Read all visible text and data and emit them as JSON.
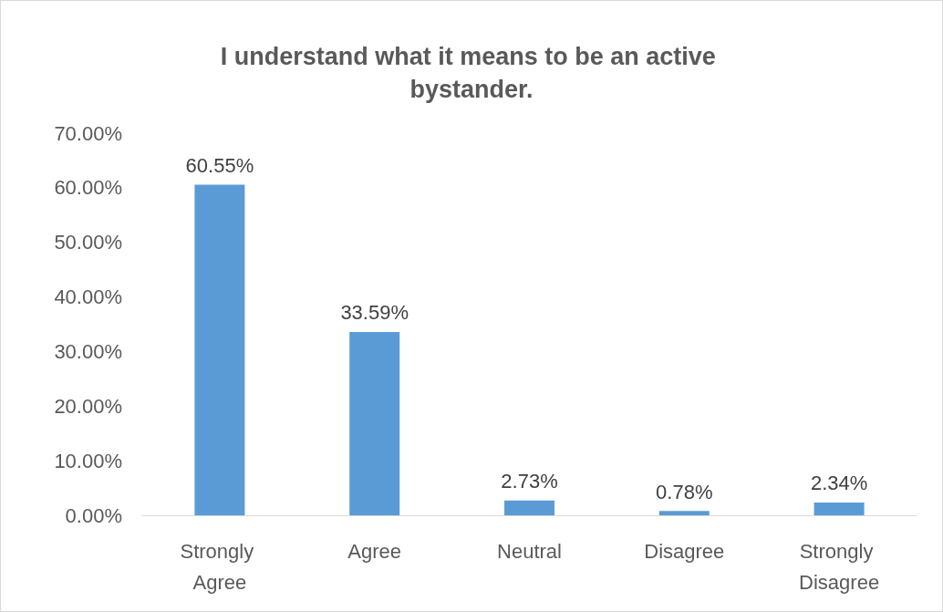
{
  "chart_data": {
    "type": "bar",
    "title": "I understand what it means to be an active bystander.",
    "categories": [
      "Strongly Agree",
      "Agree",
      "Neutral",
      "Disagree",
      "Strongly Disagree"
    ],
    "values": [
      60.55,
      33.59,
      2.73,
      0.78,
      2.34
    ],
    "value_labels": [
      "60.55%",
      "33.59%",
      "2.73%",
      "0.78%",
      "2.34%"
    ],
    "color": "#5b9bd5",
    "ylim": [
      0,
      70
    ],
    "yticks": [
      {
        "value": 0,
        "label": "0.00%"
      },
      {
        "value": 10,
        "label": "10.00%"
      },
      {
        "value": 20,
        "label": "20.00%"
      },
      {
        "value": 30,
        "label": "30.00%"
      },
      {
        "value": 40,
        "label": "40.00%"
      },
      {
        "value": 50,
        "label": "50.00%"
      },
      {
        "value": 60,
        "label": "60.00%"
      },
      {
        "value": 70,
        "label": "70.00%"
      }
    ],
    "grid": false
  }
}
